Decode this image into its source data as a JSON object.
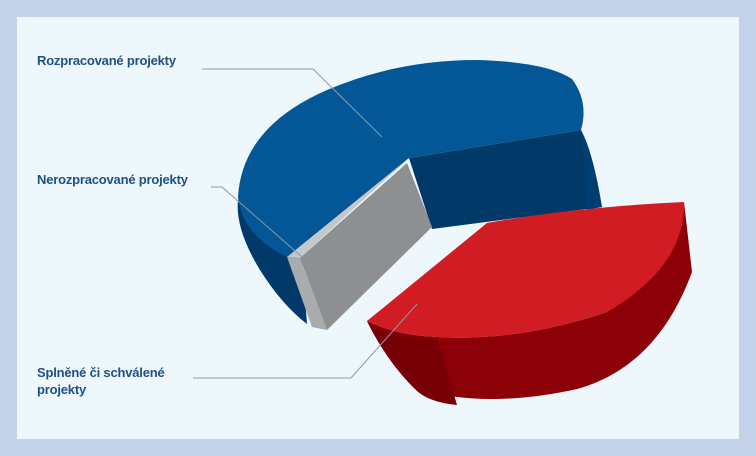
{
  "chart_data": {
    "type": "pie",
    "style": "3d-exploded",
    "title": "",
    "legend": "none",
    "slices": [
      {
        "label": "Rozpracované projekty",
        "value": 59,
        "color": "#035797",
        "side_color": "#013a68"
      },
      {
        "label": "Nerozpracované projekty",
        "value": 9,
        "color": "#c4c8ca",
        "side_color": "#8d8f91"
      },
      {
        "label": "Splněné či schválené projekty",
        "value": 32,
        "color": "#d21c24",
        "side_color": "#8c0007"
      }
    ]
  }
}
